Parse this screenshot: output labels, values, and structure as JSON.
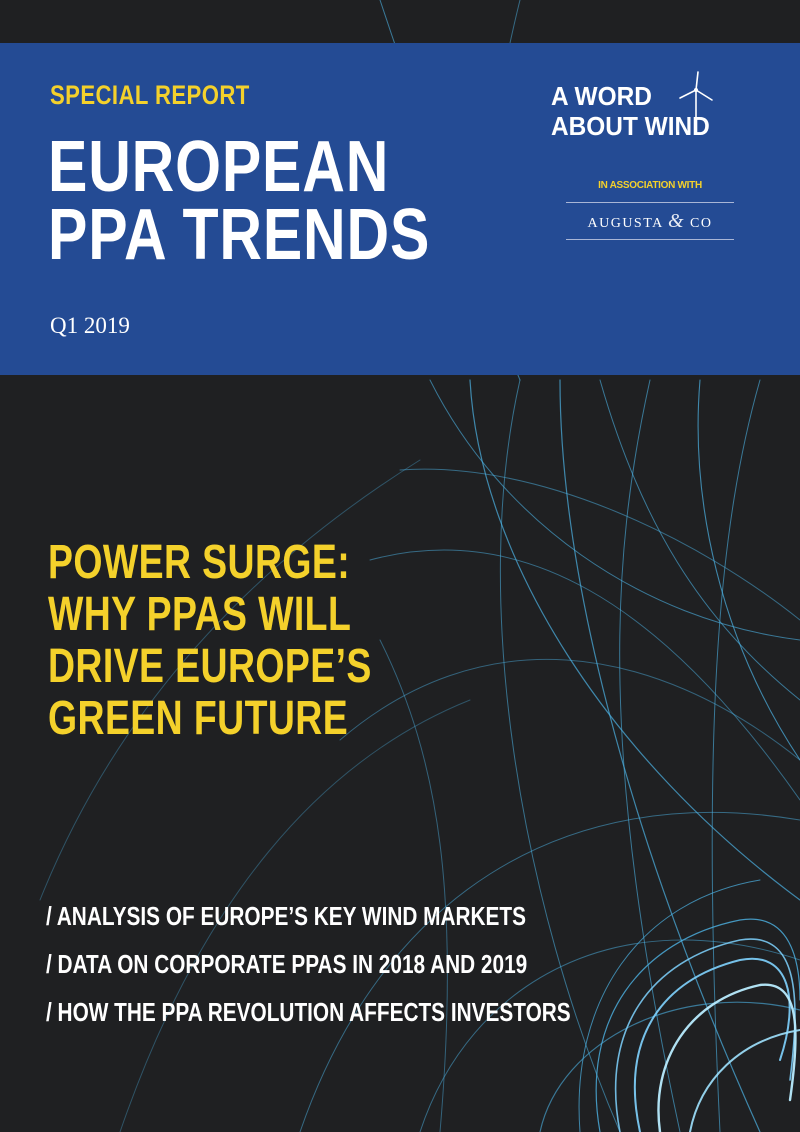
{
  "header": {
    "eyebrow": "SPECIAL REPORT",
    "title_line1": "EUROPEAN",
    "title_line2": "PPA TRENDS",
    "issue": "Q1 2019"
  },
  "brand": {
    "logo_line1": "A WORD",
    "logo_line2": "ABOUT WIND",
    "association": "IN ASSOCIATION WITH",
    "partner_left": "AUGUSTA",
    "partner_amp": "&",
    "partner_right": "CO"
  },
  "headline": {
    "lines": [
      "POWER SURGE:",
      "WHY PPAS WILL",
      "DRIVE EUROPE’S",
      "GREEN FUTURE"
    ]
  },
  "bullets": [
    "/ ANALYSIS OF EUROPE’S KEY WIND MARKETS",
    "/ DATA ON CORPORATE PPAS IN 2018 AND 2019",
    "/ HOW THE PPA REVOLUTION AFFECTS INVESTORS"
  ],
  "colors": {
    "background": "#1f2022",
    "header_blue": "#244b94",
    "accent_yellow": "#f4d12b",
    "wire_blue": "#4db4e6"
  }
}
